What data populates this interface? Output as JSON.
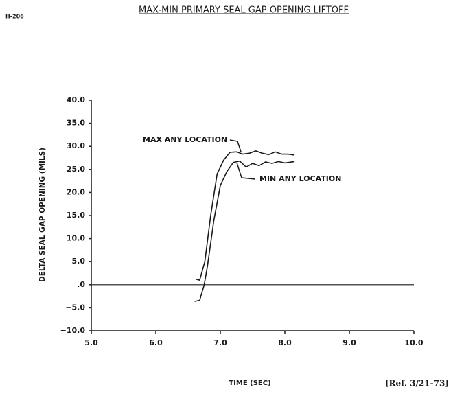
{
  "chart_data": {
    "type": "line",
    "page_label": "H-206",
    "title": "MAX-MIN PRIMARY SEAL GAP OPENING LIFTOFF",
    "x_label": "TIME (SEC)",
    "y_label": "DELTA SEAL GAP OPENING (MILS)",
    "reference": "[Ref. 3/21-73]",
    "xlim": [
      5,
      10
    ],
    "ylim": [
      -10,
      40
    ],
    "xticks": [
      {
        "value": 5,
        "label": "5.0"
      },
      {
        "value": 6,
        "label": "6.0"
      },
      {
        "value": 7,
        "label": "7.0"
      },
      {
        "value": 8,
        "label": "8.0"
      },
      {
        "value": 9,
        "label": "9.0"
      },
      {
        "value": 10,
        "label": "10.0"
      }
    ],
    "yticks": [
      {
        "value": 40,
        "label": "40.0"
      },
      {
        "value": 35,
        "label": "35.0"
      },
      {
        "value": 30,
        "label": "30.0"
      },
      {
        "value": 25,
        "label": "25.0"
      },
      {
        "value": 20,
        "label": "20.0"
      },
      {
        "value": 15,
        "label": "15.0"
      },
      {
        "value": 10,
        "label": "10.0"
      },
      {
        "value": 5,
        "label": "5.0"
      },
      {
        "value": 0,
        "label": ".0"
      },
      {
        "value": -5,
        "label": "−5.0"
      },
      {
        "value": -10,
        "label": "−10.0"
      }
    ],
    "series": [
      {
        "name": "MAX ANY LOCATION",
        "color": "#1a1a1a",
        "x": [
          6.62,
          6.68,
          6.76,
          6.85,
          6.95,
          7.05,
          7.15,
          7.25,
          7.35,
          7.45,
          7.55,
          7.65,
          7.75,
          7.85,
          7.95,
          8.05,
          8.15
        ],
        "values": [
          1.2,
          1.0,
          5,
          15,
          24,
          27,
          28.7,
          28.8,
          28.3,
          28.5,
          29,
          28.5,
          28.2,
          28.8,
          28.3,
          28.3,
          28.1
        ]
      },
      {
        "name": "MIN ANY LOCATION",
        "color": "#1a1a1a",
        "x": [
          6.6,
          6.68,
          6.75,
          6.8,
          6.9,
          7.0,
          7.1,
          7.2,
          7.3,
          7.4,
          7.5,
          7.6,
          7.7,
          7.8,
          7.9,
          8.0,
          8.15
        ],
        "values": [
          -3.6,
          -3.4,
          0,
          4,
          14,
          21.5,
          24.5,
          26.5,
          26.8,
          25.5,
          26.3,
          25.8,
          26.6,
          26.3,
          26.7,
          26.4,
          26.7
        ]
      }
    ]
  }
}
